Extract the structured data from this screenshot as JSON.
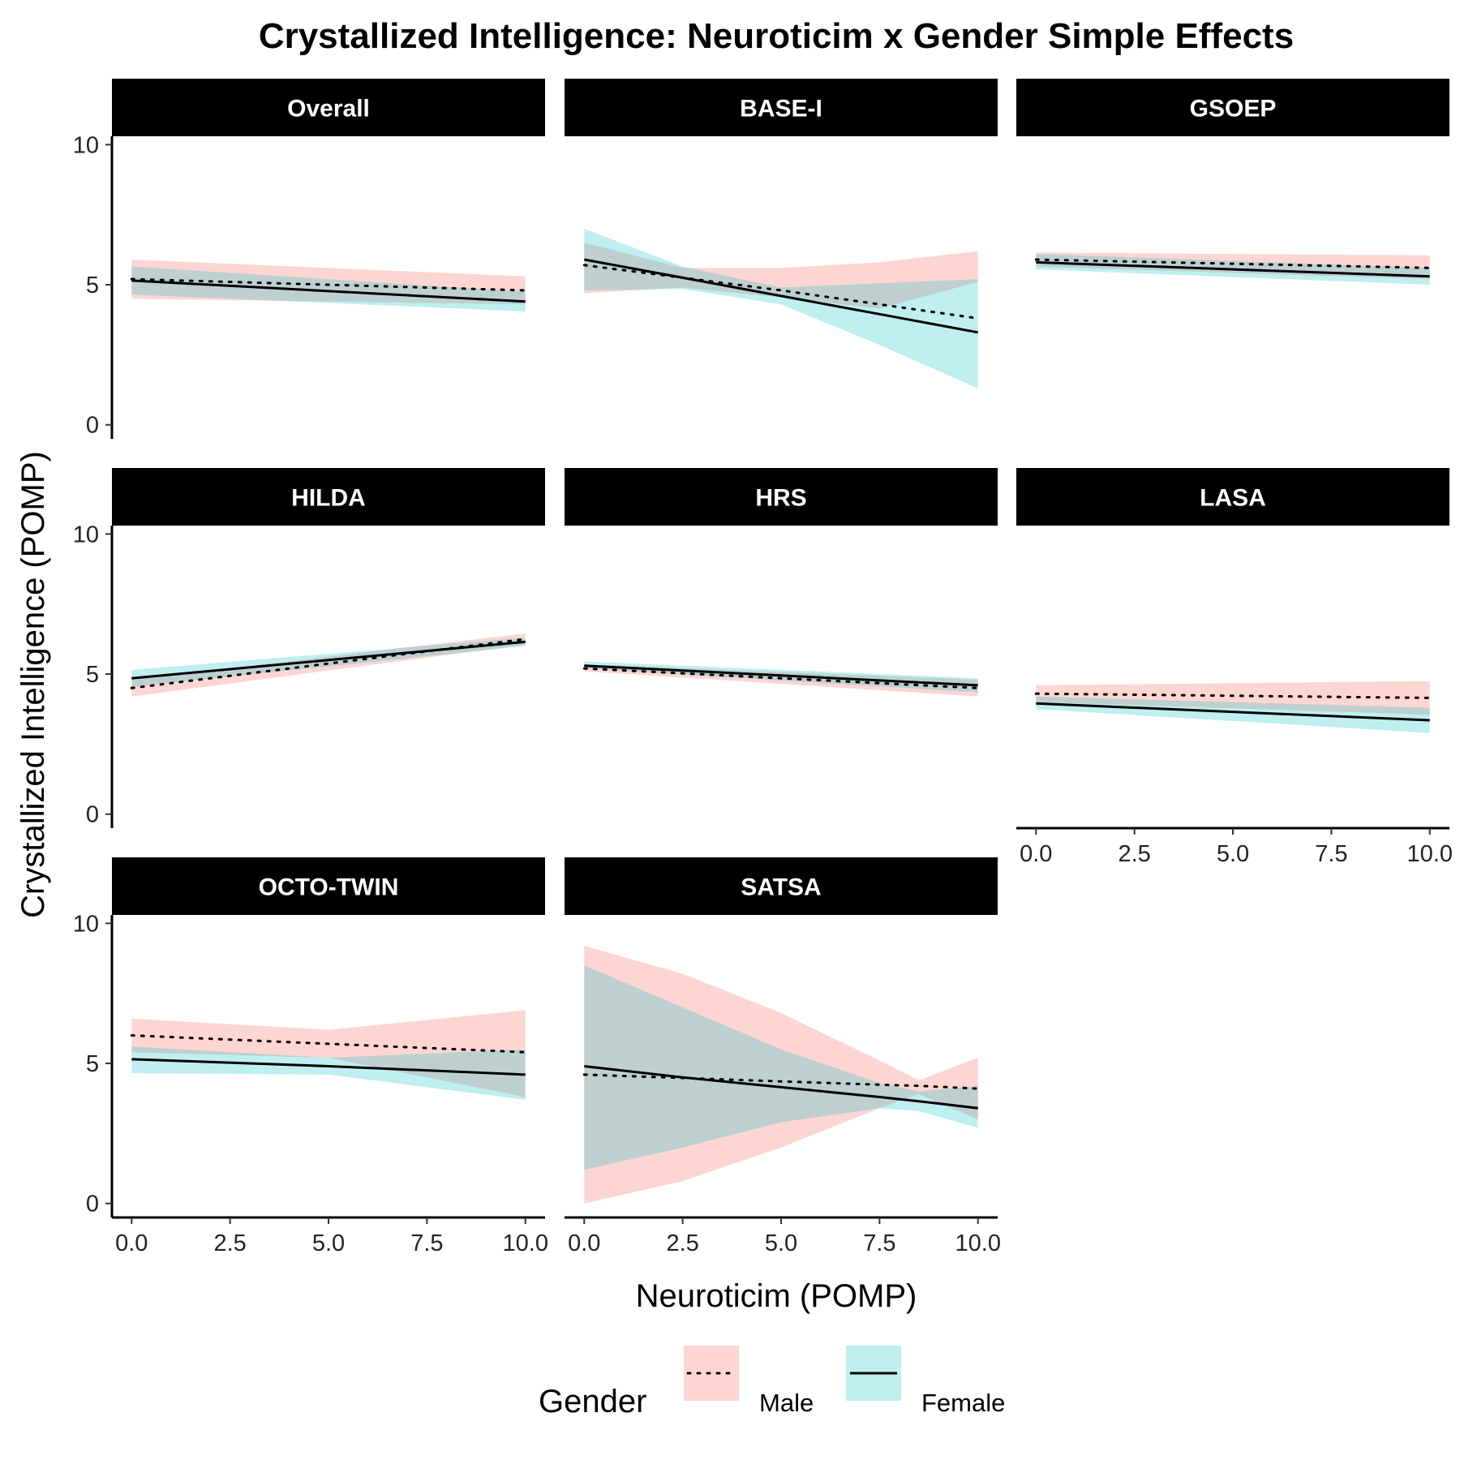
{
  "chart_data": {
    "type": "line",
    "title": "Crystallized Intelligence: Neuroticim x Gender Simple Effects",
    "xlabel": "Neuroticim (POMP)",
    "ylabel": "Crystallized Intelligence (POMP)",
    "xlim": [
      -0.5,
      10.5
    ],
    "ylim": [
      -0.5,
      10.3
    ],
    "x_ticks": [
      "0.0",
      "2.5",
      "5.0",
      "7.5",
      "10.0"
    ],
    "y_ticks": [
      "0",
      "5",
      "10"
    ],
    "grid": false,
    "legend": {
      "title": "Gender",
      "position": "bottom",
      "entries": [
        {
          "label": "Male",
          "line": "dotted",
          "fill": "#F8766D"
        },
        {
          "label": "Female",
          "line": "solid",
          "fill": "#00BFC4"
        }
      ]
    },
    "colors": {
      "male_ribbon": "#F8766D",
      "female_ribbon": "#00BFC4",
      "line": "#000000",
      "strip": "#000000"
    },
    "panels": [
      {
        "name": "Overall",
        "x": [
          0,
          10
        ],
        "male": {
          "y": [
            5.2,
            4.8
          ],
          "lower": [
            4.5,
            4.3
          ],
          "upper": [
            5.9,
            5.3
          ]
        },
        "female": {
          "y": [
            5.15,
            4.4
          ],
          "lower": [
            4.65,
            4.05
          ],
          "upper": [
            5.65,
            4.75
          ]
        }
      },
      {
        "name": "BASE-I",
        "x": [
          0,
          2.5,
          5,
          7.5,
          10
        ],
        "male": {
          "y": [
            5.7,
            5.25,
            4.8,
            4.3,
            3.8
          ],
          "lower": [
            4.7,
            4.9,
            4.55,
            4.15,
            5.1
          ],
          "upper": [
            6.5,
            5.6,
            5.6,
            5.8,
            6.2
          ]
        },
        "female": {
          "y": [
            5.9,
            5.25,
            4.6,
            3.95,
            3.3
          ],
          "lower": [
            4.8,
            4.85,
            4.3,
            2.85,
            1.3
          ],
          "upper": [
            7.0,
            5.65,
            4.9,
            5.05,
            5.2
          ]
        }
      },
      {
        "name": "GSOEP",
        "x": [
          0,
          10
        ],
        "male": {
          "y": [
            5.9,
            5.6
          ],
          "lower": [
            5.65,
            5.2
          ],
          "upper": [
            6.15,
            6.05
          ]
        },
        "female": {
          "y": [
            5.8,
            5.3
          ],
          "lower": [
            5.55,
            5.0
          ],
          "upper": [
            6.1,
            5.6
          ]
        }
      },
      {
        "name": "HILDA",
        "x": [
          0,
          10
        ],
        "male": {
          "y": [
            4.5,
            6.25
          ],
          "lower": [
            4.2,
            6.05
          ],
          "upper": [
            4.8,
            6.45
          ]
        },
        "female": {
          "y": [
            4.85,
            6.15
          ],
          "lower": [
            4.55,
            6.0
          ],
          "upper": [
            5.15,
            6.3
          ]
        }
      },
      {
        "name": "HRS",
        "x": [
          0,
          10
        ],
        "male": {
          "y": [
            5.2,
            4.5
          ],
          "lower": [
            5.1,
            4.2
          ],
          "upper": [
            5.35,
            4.8
          ]
        },
        "female": {
          "y": [
            5.3,
            4.6
          ],
          "lower": [
            5.2,
            4.35
          ],
          "upper": [
            5.45,
            4.85
          ]
        }
      },
      {
        "name": "LASA",
        "x": [
          0,
          10
        ],
        "male": {
          "y": [
            4.3,
            4.15
          ],
          "lower": [
            4.0,
            3.55
          ],
          "upper": [
            4.6,
            4.75
          ]
        },
        "female": {
          "y": [
            3.95,
            3.35
          ],
          "lower": [
            3.75,
            2.9
          ],
          "upper": [
            4.2,
            3.8
          ]
        }
      },
      {
        "name": "OCTO-TWIN",
        "x": [
          0,
          5,
          10
        ],
        "male": {
          "y": [
            6.0,
            5.7,
            5.4
          ],
          "lower": [
            5.4,
            5.2,
            3.8
          ],
          "upper": [
            6.6,
            6.2,
            6.9
          ]
        },
        "female": {
          "y": [
            5.15,
            4.9,
            4.6
          ],
          "lower": [
            4.65,
            4.6,
            3.7
          ],
          "upper": [
            5.6,
            5.2,
            5.5
          ]
        }
      },
      {
        "name": "SATSA",
        "x": [
          0,
          2.5,
          5,
          7.5,
          8.5,
          10
        ],
        "male": {
          "y": [
            4.6,
            4.48,
            4.36,
            4.24,
            4.2,
            4.1
          ],
          "lower": [
            0.0,
            0.8,
            2.0,
            3.4,
            3.9,
            3.0
          ],
          "upper": [
            9.2,
            8.2,
            6.8,
            5.1,
            4.4,
            5.2
          ]
        },
        "female": {
          "y": [
            4.9,
            4.5,
            4.15,
            3.8,
            3.65,
            3.4
          ],
          "lower": [
            1.2,
            2.0,
            2.9,
            3.4,
            3.3,
            2.7
          ],
          "upper": [
            8.5,
            7.0,
            5.5,
            4.3,
            4.0,
            4.2
          ]
        }
      }
    ]
  }
}
